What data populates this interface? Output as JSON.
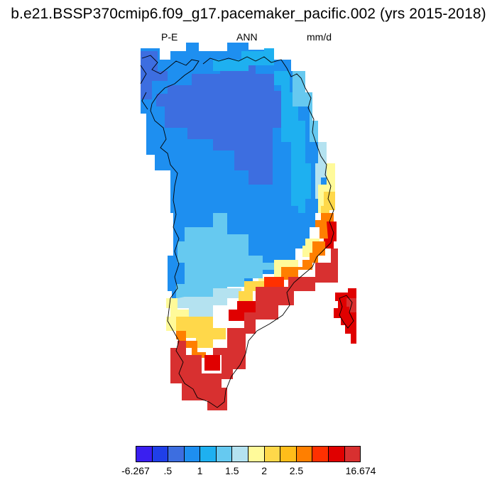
{
  "title": "b.e21.BSSP370cmip6.f09_g17.pacemaker_pacific.002 (yrs 2015-2018)",
  "subtitle_left": "P-E",
  "subtitle_center": "ANN",
  "subtitle_right": "mm/d",
  "colorbar": {
    "colors": [
      "#3a1ff0",
      "#1f3fe8",
      "#3d6ee0",
      "#1e8ff0",
      "#1eb0f0",
      "#66c9f0",
      "#b4e2f0",
      "#fffa9a",
      "#ffd84a",
      "#ffbd1a",
      "#ff7f00",
      "#ff3000",
      "#e00000",
      "#d83030"
    ],
    "labels": [
      "-6.267",
      ".5",
      "1",
      "1.5",
      "2",
      "2.5",
      "16.674"
    ]
  },
  "map": {
    "region": "Greenland",
    "variable": "P-E",
    "season": "ANN",
    "units": "mm/d"
  }
}
